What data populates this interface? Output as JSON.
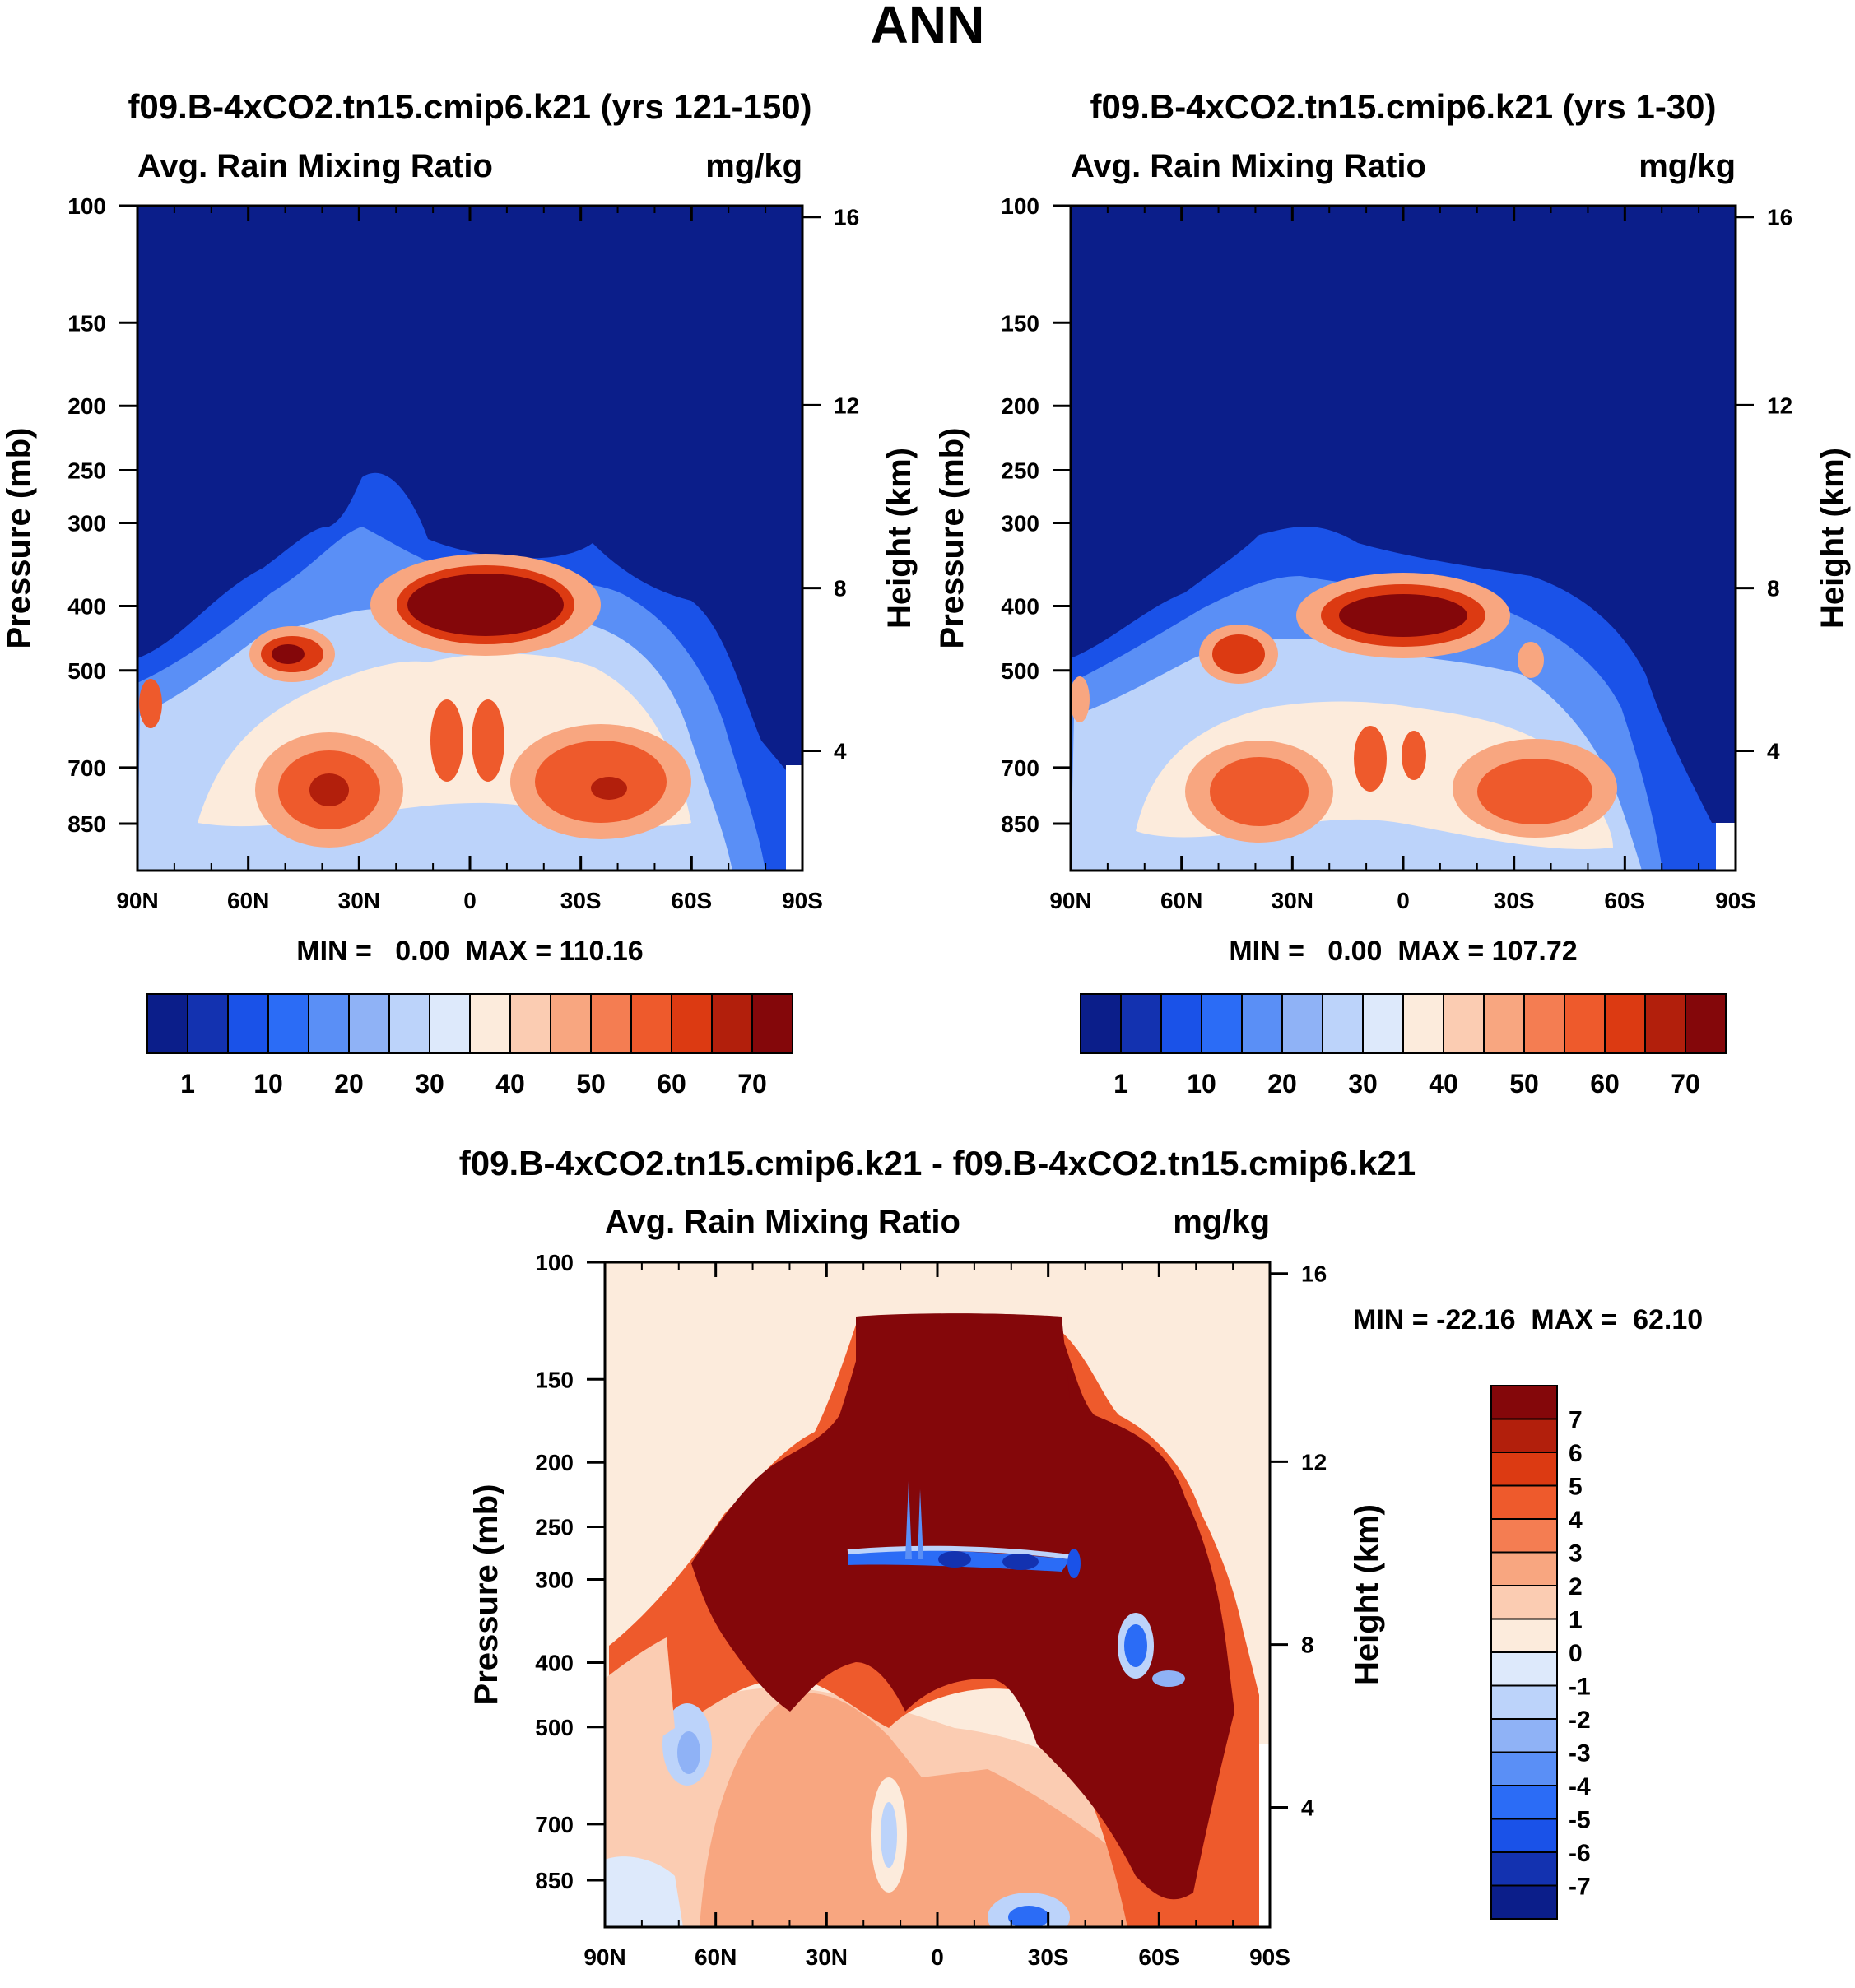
{
  "page": {
    "title": "ANN"
  },
  "chart_data": [
    {
      "type": "heatmap",
      "id": "panel-1",
      "title": "f09.B-4xCO2.tn15.cmip6.k21 (yrs 121-150)",
      "subtitle_left": "Avg. Rain Mixing Ratio",
      "subtitle_right": "mg/kg",
      "ylabel": "Pressure (mb)",
      "y2label": "Height (km)",
      "x_ticks": [
        "90N",
        "60N",
        "30N",
        "0",
        "30S",
        "60S",
        "90S"
      ],
      "y_ticks": [
        "100",
        "150",
        "200",
        "250",
        "300",
        "400",
        "500",
        "700",
        "850"
      ],
      "y2_ticks": [
        "16",
        "12",
        "8",
        "4"
      ],
      "stats": "MIN =   0.00  MAX = 110.16",
      "colorbar_labels": [
        "1",
        "10",
        "20",
        "30",
        "40",
        "50",
        "60",
        "70"
      ],
      "colorbar_colors": [
        "#0b1e8a",
        "#1332b0",
        "#1a52e8",
        "#2b6cf6",
        "#5a8ff6",
        "#8fb2f6",
        "#bcd3fa",
        "#dde9fb",
        "#fcebdc",
        "#fbccb2",
        "#f8a680",
        "#f47d52",
        "#ee5a2c",
        "#dc3a12",
        "#b21f0c",
        "#84070a"
      ]
    },
    {
      "type": "heatmap",
      "id": "panel-2",
      "title": "f09.B-4xCO2.tn15.cmip6.k21 (yrs 1-30)",
      "subtitle_left": "Avg. Rain Mixing Ratio",
      "subtitle_right": "mg/kg",
      "ylabel": "Pressure (mb)",
      "y2label": "Height (km)",
      "x_ticks": [
        "90N",
        "60N",
        "30N",
        "0",
        "30S",
        "60S",
        "90S"
      ],
      "y_ticks": [
        "100",
        "150",
        "200",
        "250",
        "300",
        "400",
        "500",
        "700",
        "850"
      ],
      "y2_ticks": [
        "16",
        "12",
        "8",
        "4"
      ],
      "stats": "MIN =   0.00  MAX = 107.72",
      "colorbar_labels": [
        "1",
        "10",
        "20",
        "30",
        "40",
        "50",
        "60",
        "70"
      ],
      "colorbar_colors": [
        "#0b1e8a",
        "#1332b0",
        "#1a52e8",
        "#2b6cf6",
        "#5a8ff6",
        "#8fb2f6",
        "#bcd3fa",
        "#dde9fb",
        "#fcebdc",
        "#fbccb2",
        "#f8a680",
        "#f47d52",
        "#ee5a2c",
        "#dc3a12",
        "#b21f0c",
        "#84070a"
      ]
    },
    {
      "type": "heatmap",
      "id": "panel-3",
      "title": "f09.B-4xCO2.tn15.cmip6.k21 - f09.B-4xCO2.tn15.cmip6.k21",
      "subtitle_left": "Avg. Rain Mixing Ratio",
      "subtitle_right": "mg/kg",
      "ylabel": "Pressure (mb)",
      "y2label": "Height (km)",
      "x_ticks": [
        "90N",
        "60N",
        "30N",
        "0",
        "30S",
        "60S",
        "90S"
      ],
      "y_ticks": [
        "100",
        "150",
        "200",
        "250",
        "300",
        "400",
        "500",
        "700",
        "850"
      ],
      "y2_ticks": [
        "16",
        "12",
        "8",
        "4"
      ],
      "stats": "MIN = -22.16  MAX =  62.10",
      "colorbar_labels": [
        "7",
        "6",
        "5",
        "4",
        "3",
        "2",
        "1",
        "0",
        "-1",
        "-2",
        "-3",
        "-4",
        "-5",
        "-6",
        "-7"
      ],
      "colorbar_colors": [
        "#84070a",
        "#b21f0c",
        "#dc3a12",
        "#ee5a2c",
        "#f47d52",
        "#f8a680",
        "#fbccb2",
        "#fcebdc",
        "#dde9fb",
        "#bcd3fa",
        "#8fb2f6",
        "#5a8ff6",
        "#2b6cf6",
        "#1a52e8",
        "#1332b0",
        "#0b1e8a"
      ]
    }
  ]
}
